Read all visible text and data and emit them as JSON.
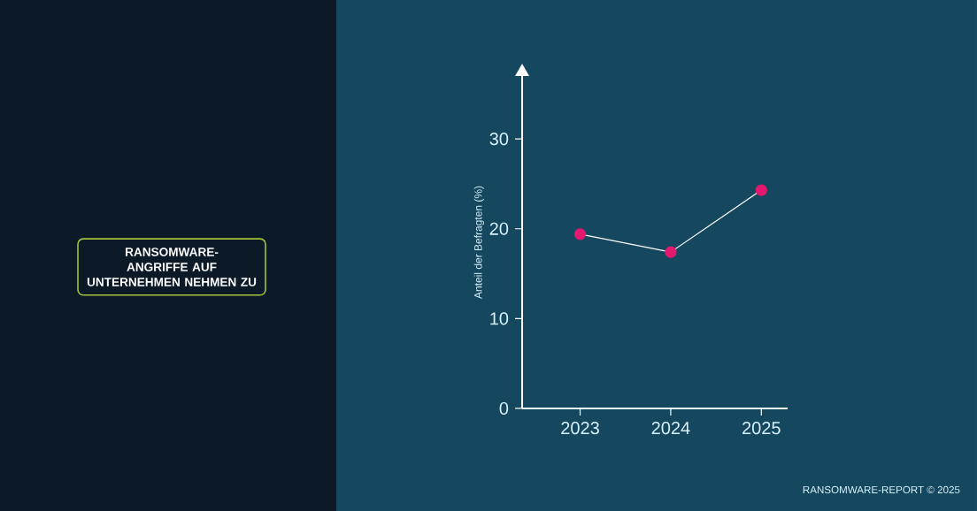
{
  "chart_data": {
    "type": "line",
    "title": "RANSOMWARE-ANGRIFFE AUF UNTERNEHMEN NEHMEN ZU",
    "ylabel": "Anteil der Befragten (%)",
    "annotations": [
      "RANSOMWARE-REPORT © 2025"
    ],
    "categories": [
      "2023",
      "2024",
      "2025"
    ],
    "series": [
      {
        "color": "#e3196f",
        "values": [
          19.4,
          17.4,
          24.3
        ]
      }
    ],
    "ylim": [
      0,
      37
    ],
    "yticks": [
      0,
      10,
      20,
      30
    ],
    "marker": "circle",
    "line_style": "solid"
  }
}
